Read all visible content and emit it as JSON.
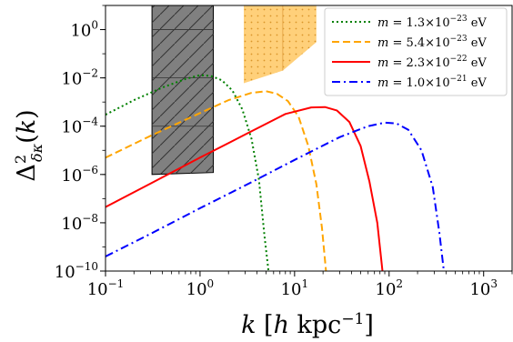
{
  "chart_data": {
    "type": "line",
    "xlabel": "k [h kpc⁻¹]",
    "ylabel": "Δ²δκ(k)",
    "xscale": "log",
    "yscale": "log",
    "xlim": [
      0.1,
      2000
    ],
    "ylim": [
      1e-10,
      10
    ],
    "x_ticks": [
      {
        "base": "10",
        "exp": "−1",
        "value": 0.1
      },
      {
        "base": "10",
        "exp": "0",
        "value": 1
      },
      {
        "base": "10",
        "exp": "1",
        "value": 10
      },
      {
        "base": "10",
        "exp": "2",
        "value": 100
      },
      {
        "base": "10",
        "exp": "3",
        "value": 1000
      }
    ],
    "y_ticks": [
      {
        "base": "10",
        "exp": "−10",
        "value": 1e-10
      },
      {
        "base": "10",
        "exp": "−8",
        "value": 1e-08
      },
      {
        "base": "10",
        "exp": "−6",
        "value": 1e-06
      },
      {
        "base": "10",
        "exp": "−4",
        "value": 0.0001
      },
      {
        "base": "10",
        "exp": "−2",
        "value": 0.01
      },
      {
        "base": "10",
        "exp": "0",
        "value": 1
      }
    ],
    "legend_position": "top-right",
    "series": [
      {
        "name": "m = 1.3×10⁻²³ eV",
        "legend": {
          "pre": "m",
          "eq": " = 1.3×10",
          "exp": "−23",
          "unit": " eV"
        },
        "color": "#008000",
        "dash": "dotted",
        "x": [
          0.1,
          0.2,
          0.4,
          0.7,
          1.0,
          1.3,
          1.7,
          2.2,
          2.8,
          3.5,
          4.2,
          4.8,
          5.3
        ],
        "y": [
          0.0003,
          0.0012,
          0.004,
          0.009,
          0.013,
          0.012,
          0.008,
          0.003,
          0.0005,
          3e-05,
          6e-07,
          3e-09,
          1e-10
        ]
      },
      {
        "name": "m = 5.4×10⁻²³ eV",
        "legend": {
          "pre": "m",
          "eq": " = 5.4×10",
          "exp": "−23",
          "unit": " eV"
        },
        "color": "#FFA500",
        "dash": "dashed",
        "x": [
          0.1,
          0.3,
          1.0,
          2.0,
          3.5,
          5.0,
          6.5,
          8.5,
          11,
          14,
          17,
          19.5,
          21.5
        ],
        "y": [
          5e-06,
          4e-05,
          0.00035,
          0.0012,
          0.0024,
          0.0028,
          0.0022,
          0.0011,
          0.00025,
          1.5e-05,
          4e-07,
          6e-09,
          1e-10
        ]
      },
      {
        "name": "m = 2.3×10⁻²² eV",
        "legend": {
          "pre": "m",
          "eq": " = 2.3×10",
          "exp": "−22",
          "unit": " eV"
        },
        "color": "#FF0000",
        "dash": "solid",
        "x": [
          0.1,
          0.3,
          1.0,
          3.0,
          8.0,
          15,
          21,
          28,
          38,
          50,
          62,
          75,
          85
        ],
        "y": [
          4.5e-08,
          4.2e-07,
          5e-06,
          4.5e-05,
          0.00032,
          0.0006,
          0.00062,
          0.00045,
          0.00015,
          1.5e-05,
          5e-07,
          1e-08,
          1e-10
        ]
      },
      {
        "name": "m = 1.0×10⁻²¹ eV",
        "legend": {
          "pre": "m",
          "eq": " = 1.0×10",
          "exp": "−21",
          "unit": " eV"
        },
        "color": "#0000FF",
        "dash": "dashdot",
        "x": [
          0.1,
          0.3,
          1.0,
          3.0,
          10,
          30,
          60,
          90,
          120,
          160,
          220,
          290,
          340,
          380
        ],
        "y": [
          4e-10,
          3.5e-09,
          4e-08,
          3.5e-07,
          4e-06,
          3.5e-05,
          0.0001,
          0.00014,
          0.00013,
          7e-05,
          1e-05,
          3e-07,
          4e-09,
          1e-10
        ]
      }
    ],
    "regions": [
      {
        "fill": "#808080",
        "pattern": "hatch",
        "polygon": [
          [
            0.31,
            10
          ],
          [
            1.38,
            10
          ],
          [
            1.38,
            1.2e-06
          ],
          [
            0.31,
            1e-06
          ]
        ]
      },
      {
        "fill": "#FFC04D",
        "pattern": "dots",
        "polygon": [
          [
            2.9,
            10
          ],
          [
            17,
            10
          ],
          [
            17,
            0.3
          ],
          [
            7.5,
            0.02
          ],
          [
            2.9,
            0.006
          ]
        ]
      }
    ]
  }
}
